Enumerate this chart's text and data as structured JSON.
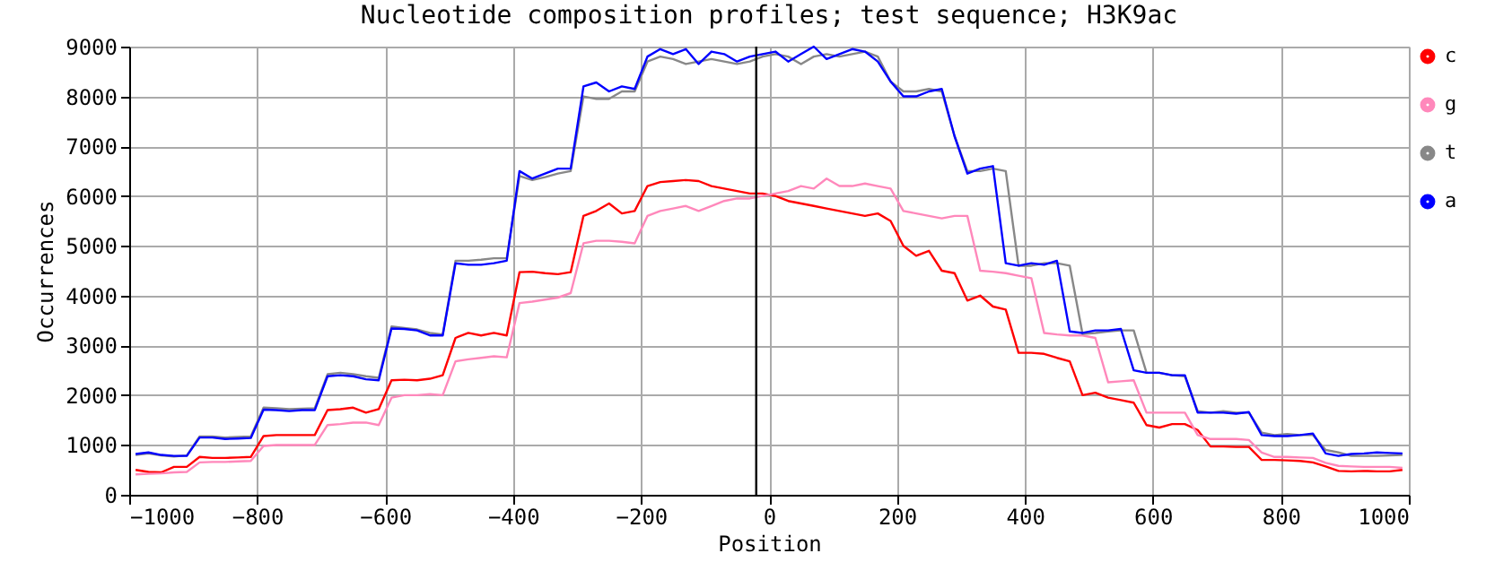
{
  "chart_data": {
    "type": "line",
    "title": "Nucleotide composition profiles; test sequence; H3K9ac",
    "xlabel": "Position",
    "ylabel": "Occurrences",
    "x": [
      -990,
      -970,
      -950,
      -930,
      -910,
      -890,
      -870,
      -850,
      -830,
      -810,
      -790,
      -770,
      -750,
      -730,
      -710,
      -690,
      -670,
      -650,
      -630,
      -610,
      -590,
      -570,
      -550,
      -530,
      -510,
      -490,
      -470,
      -450,
      -430,
      -410,
      -390,
      -370,
      -350,
      -330,
      -310,
      -290,
      -270,
      -250,
      -230,
      -210,
      -190,
      -170,
      -150,
      -130,
      -110,
      -90,
      -70,
      -50,
      -30,
      -10,
      10,
      30,
      50,
      70,
      90,
      110,
      130,
      150,
      170,
      190,
      210,
      230,
      250,
      270,
      290,
      310,
      330,
      350,
      370,
      390,
      410,
      430,
      450,
      470,
      490,
      510,
      530,
      550,
      570,
      590,
      610,
      630,
      650,
      670,
      690,
      710,
      730,
      750,
      770,
      790,
      810,
      830,
      850,
      870,
      890,
      910,
      930,
      950,
      970,
      990
    ],
    "series": [
      {
        "name": "c",
        "color": "#ff0000",
        "values": [
          500,
          460,
          450,
          560,
          560,
          760,
          740,
          740,
          750,
          760,
          1180,
          1200,
          1200,
          1200,
          1200,
          1700,
          1720,
          1750,
          1650,
          1720,
          2300,
          2310,
          2300,
          2330,
          2400,
          3150,
          3250,
          3200,
          3250,
          3200,
          4470,
          4480,
          4450,
          4430,
          4470,
          5600,
          5700,
          5850,
          5650,
          5700,
          6200,
          6280,
          6300,
          6320,
          6300,
          6200,
          6150,
          6100,
          6050,
          6050,
          6000,
          5900,
          5850,
          5800,
          5750,
          5700,
          5650,
          5600,
          5650,
          5500,
          5000,
          4800,
          4900,
          4500,
          4450,
          3900,
          4000,
          3780,
          3720,
          2850,
          2850,
          2830,
          2750,
          2680,
          2000,
          2050,
          1950,
          1900,
          1850,
          1400,
          1350,
          1420,
          1420,
          1300,
          970,
          970,
          960,
          960,
          700,
          700,
          690,
          680,
          650,
          570,
          480,
          470,
          480,
          470,
          470,
          500
        ]
      },
      {
        "name": "g",
        "color": "#ff88bb",
        "values": [
          410,
          420,
          430,
          450,
          460,
          650,
          660,
          660,
          670,
          680,
          980,
          1000,
          1000,
          1000,
          1000,
          1400,
          1420,
          1450,
          1450,
          1400,
          1950,
          2000,
          2000,
          2020,
          2000,
          2680,
          2720,
          2750,
          2780,
          2760,
          3850,
          3880,
          3920,
          3960,
          4050,
          5050,
          5100,
          5100,
          5080,
          5050,
          5600,
          5700,
          5750,
          5800,
          5700,
          5800,
          5900,
          5950,
          5950,
          6000,
          6050,
          6100,
          6200,
          6150,
          6350,
          6200,
          6200,
          6250,
          6200,
          6150,
          5700,
          5650,
          5600,
          5550,
          5600,
          5600,
          4500,
          4480,
          4450,
          4400,
          4350,
          3250,
          3220,
          3200,
          3200,
          3150,
          2260,
          2280,
          2300,
          1650,
          1650,
          1650,
          1650,
          1200,
          1120,
          1120,
          1120,
          1100,
          850,
          760,
          760,
          750,
          740,
          640,
          580,
          570,
          560,
          560,
          560,
          540
        ]
      },
      {
        "name": "t",
        "color": "#888888",
        "values": [
          800,
          830,
          790,
          770,
          790,
          1170,
          1170,
          1150,
          1160,
          1170,
          1750,
          1740,
          1720,
          1730,
          1740,
          2420,
          2450,
          2420,
          2380,
          2350,
          3380,
          3350,
          3320,
          3250,
          3220,
          4700,
          4700,
          4720,
          4750,
          4750,
          6400,
          6320,
          6380,
          6450,
          6500,
          8000,
          7950,
          7950,
          8100,
          8100,
          8700,
          8800,
          8750,
          8650,
          8700,
          8750,
          8700,
          8650,
          8700,
          8800,
          8850,
          8800,
          8650,
          8800,
          8850,
          8800,
          8850,
          8900,
          8800,
          8300,
          8100,
          8100,
          8150,
          8100,
          7200,
          6500,
          6500,
          6550,
          6500,
          4600,
          4600,
          4650,
          4650,
          4600,
          3230,
          3250,
          3280,
          3300,
          3300,
          2450,
          2450,
          2400,
          2380,
          1680,
          1650,
          1680,
          1650,
          1650,
          1250,
          1200,
          1220,
          1200,
          1200,
          900,
          850,
          780,
          780,
          780,
          790,
          800
        ]
      },
      {
        "name": "a",
        "color": "#0000ff",
        "values": [
          820,
          850,
          800,
          780,
          780,
          1150,
          1150,
          1120,
          1130,
          1140,
          1710,
          1700,
          1680,
          1700,
          1700,
          2380,
          2400,
          2380,
          2320,
          2300,
          3340,
          3330,
          3300,
          3200,
          3200,
          4650,
          4620,
          4620,
          4650,
          4700,
          6500,
          6350,
          6450,
          6550,
          6550,
          8200,
          8280,
          8100,
          8200,
          8150,
          8800,
          8950,
          8850,
          8950,
          8650,
          8900,
          8850,
          8700,
          8800,
          8850,
          8900,
          8700,
          8850,
          9000,
          8750,
          8850,
          8950,
          8900,
          8700,
          8300,
          8000,
          8000,
          8100,
          8150,
          7200,
          6450,
          6550,
          6600,
          4650,
          4600,
          4650,
          4620,
          4700,
          3280,
          3250,
          3300,
          3300,
          3330,
          2500,
          2450,
          2450,
          2400,
          2400,
          1650,
          1650,
          1650,
          1630,
          1660,
          1200,
          1180,
          1180,
          1200,
          1230,
          830,
          780,
          820,
          830,
          850,
          840,
          830
        ]
      }
    ],
    "xlim": [
      -1000,
      1000
    ],
    "xticks": [
      -1000,
      -800,
      -600,
      -400,
      -200,
      0,
      200,
      400,
      600,
      800,
      1000
    ],
    "ylim": [
      0,
      9000
    ],
    "yticks": [
      0,
      1000,
      2000,
      3000,
      4000,
      5000,
      6000,
      7000,
      8000,
      9000
    ],
    "ref_lines": [
      {
        "axis": "x",
        "value": -20,
        "color": "#000000"
      }
    ],
    "grid": true,
    "legend": "top right",
    "marker": "none",
    "line_style": "solid"
  }
}
